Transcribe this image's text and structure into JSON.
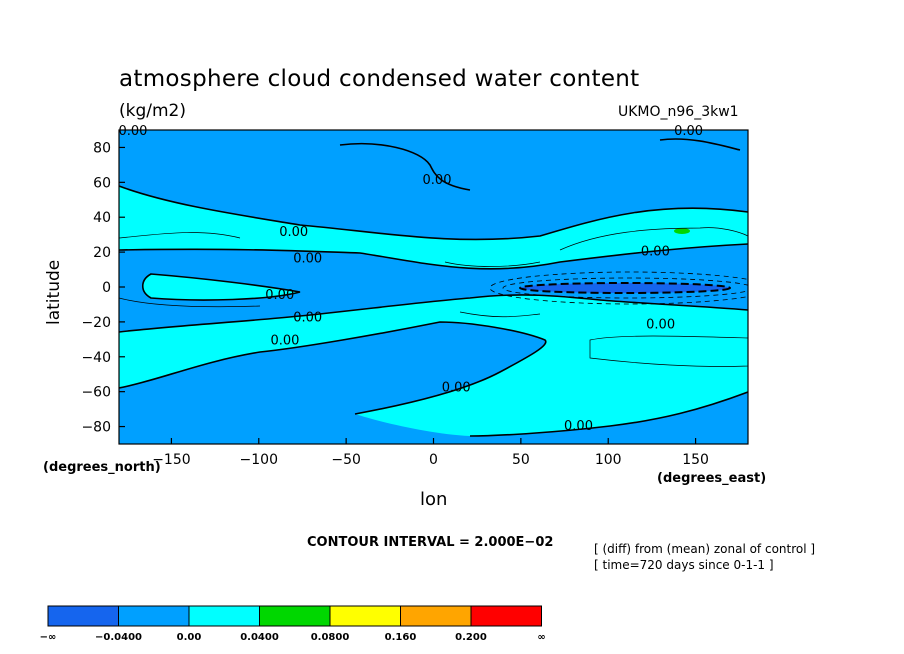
{
  "chart_data": {
    "type": "contour",
    "title": "atmosphere cloud condensed water content",
    "units": "(kg/m2)",
    "model": "UKMO_n96_3kw1",
    "xlabel": "lon",
    "ylabel": "latitude",
    "x_unit_label": "(degrees_east)",
    "y_unit_label": "(degrees_north)",
    "xlim": [
      -180,
      180
    ],
    "ylim": [
      -90,
      90
    ],
    "x_ticks": [
      -150,
      -100,
      -50,
      0,
      50,
      100,
      150
    ],
    "x_tick_labels": [
      "−150",
      "−100",
      "−50",
      "0",
      "50",
      "100",
      "150"
    ],
    "y_ticks": [
      80,
      60,
      40,
      20,
      0,
      -20,
      -40,
      -60,
      -80
    ],
    "y_tick_labels": [
      "80",
      "60",
      "40",
      "20",
      "0",
      "−20",
      "−40",
      "−60",
      "−80"
    ],
    "contour_interval_text": "CONTOUR INTERVAL = 2.000E−02",
    "notes": [
      "[ (diff) from (mean) zonal of control ]",
      "[ time=720 days since 0-1-1 ]"
    ],
    "contour_label": "0.00",
    "contour_label_points": [
      {
        "lon": -172,
        "lat": 90
      },
      {
        "lon": 146,
        "lat": 90
      },
      {
        "lon": 2,
        "lat": 62
      },
      {
        "lon": -80,
        "lat": 32
      },
      {
        "lon": -72,
        "lat": 17
      },
      {
        "lon": -88,
        "lat": -4
      },
      {
        "lon": -72,
        "lat": -17
      },
      {
        "lon": -85,
        "lat": -30
      },
      {
        "lon": 127,
        "lat": 21
      },
      {
        "lon": 130,
        "lat": -21
      },
      {
        "lon": 13,
        "lat": -57
      },
      {
        "lon": 83,
        "lat": -79
      }
    ],
    "colorbar": {
      "colors": [
        "#1565ee",
        "#00a0ff",
        "#00ffff",
        "#00d700",
        "#ffff00",
        "#ffa500",
        "#ff0000"
      ],
      "labels": [
        "−∞",
        "−0.0400",
        "0.00",
        "0.0400",
        "0.0800",
        "0.160",
        "0.200",
        "∞"
      ]
    }
  }
}
